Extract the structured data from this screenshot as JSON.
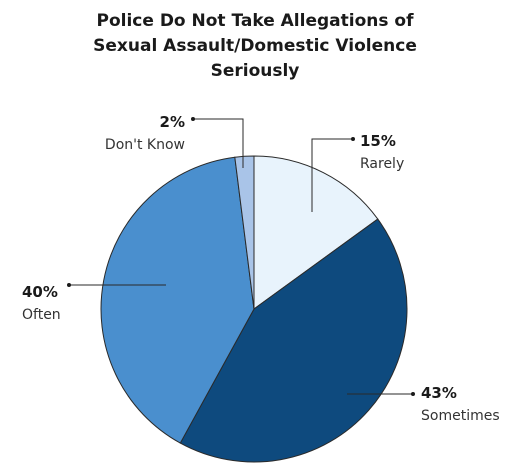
{
  "chart_data": {
    "type": "pie",
    "title_lines": [
      "Police Do Not Take Allegations of",
      "Sexual Assault/Domestic Violence",
      "Seriously"
    ],
    "slices": [
      {
        "label": "Rarely",
        "value": 15,
        "value_label": "15%",
        "color": "#e8f3fc"
      },
      {
        "label": "Sometimes",
        "value": 43,
        "value_label": "43%",
        "color": "#0e4a7e"
      },
      {
        "label": "Often",
        "value": 40,
        "value_label": "40%",
        "color": "#4a8fce"
      },
      {
        "label": "Don't Know",
        "value": 2,
        "value_label": "2%",
        "color": "#a9c4e8"
      }
    ],
    "start_angle": "12 o'clock",
    "direction": "clockwise",
    "legend": "none",
    "slice_border_color": "#2a2a2a"
  }
}
